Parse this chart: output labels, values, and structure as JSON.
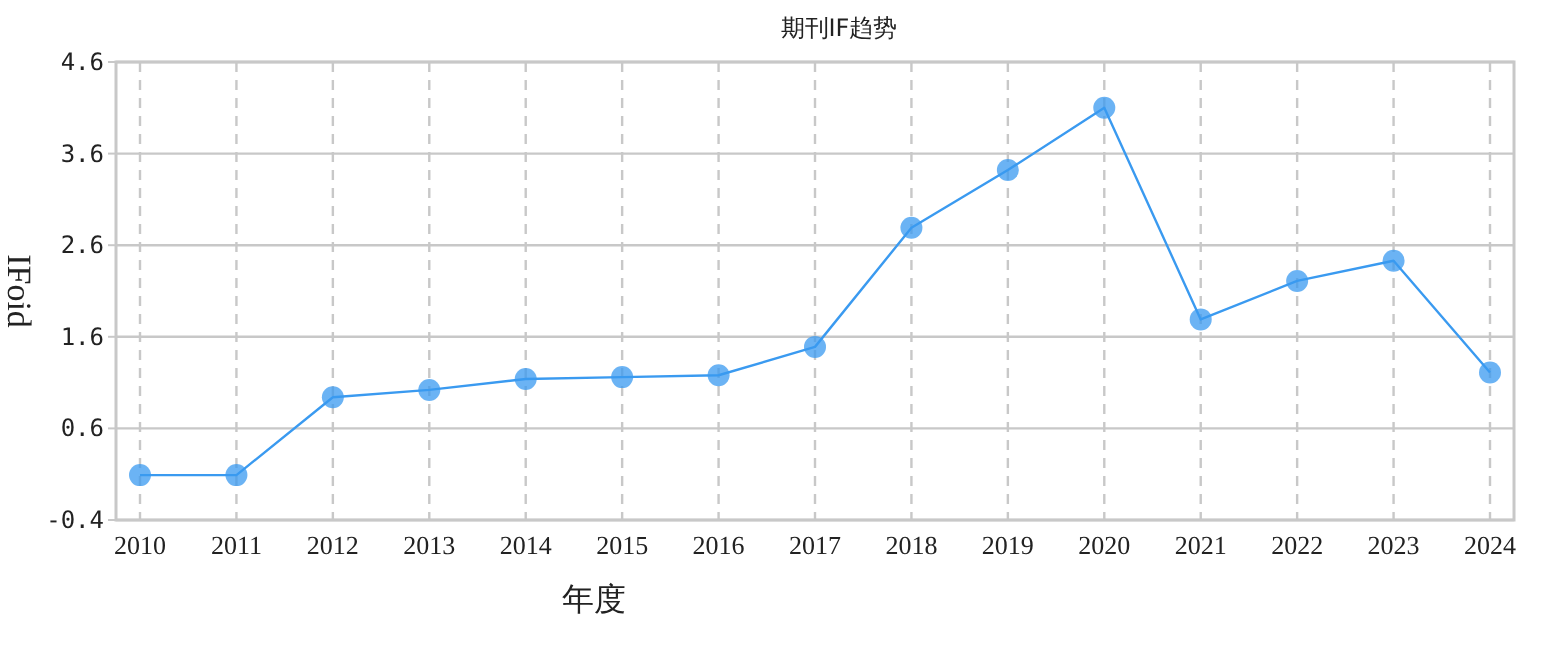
{
  "chart_data": {
    "type": "line",
    "title": "期刊IF趋势",
    "xlabel": "年度",
    "ylabel": "IFoid",
    "categories": [
      "2010",
      "2011",
      "2012",
      "2013",
      "2014",
      "2015",
      "2016",
      "2017",
      "2018",
      "2019",
      "2020",
      "2021",
      "2022",
      "2023",
      "2024"
    ],
    "series": [
      {
        "color": "#3a9af0",
        "values": [
          0.09,
          0.09,
          0.94,
          1.02,
          1.14,
          1.16,
          1.18,
          1.49,
          2.79,
          3.42,
          4.1,
          1.79,
          2.21,
          2.43,
          1.21
        ]
      }
    ],
    "ylim": [
      -0.4,
      4.6
    ],
    "yticks": [
      -0.4,
      0.6,
      1.6,
      2.6,
      3.6,
      4.6
    ],
    "grid": true,
    "marker": "circle",
    "line_style": "solid"
  }
}
